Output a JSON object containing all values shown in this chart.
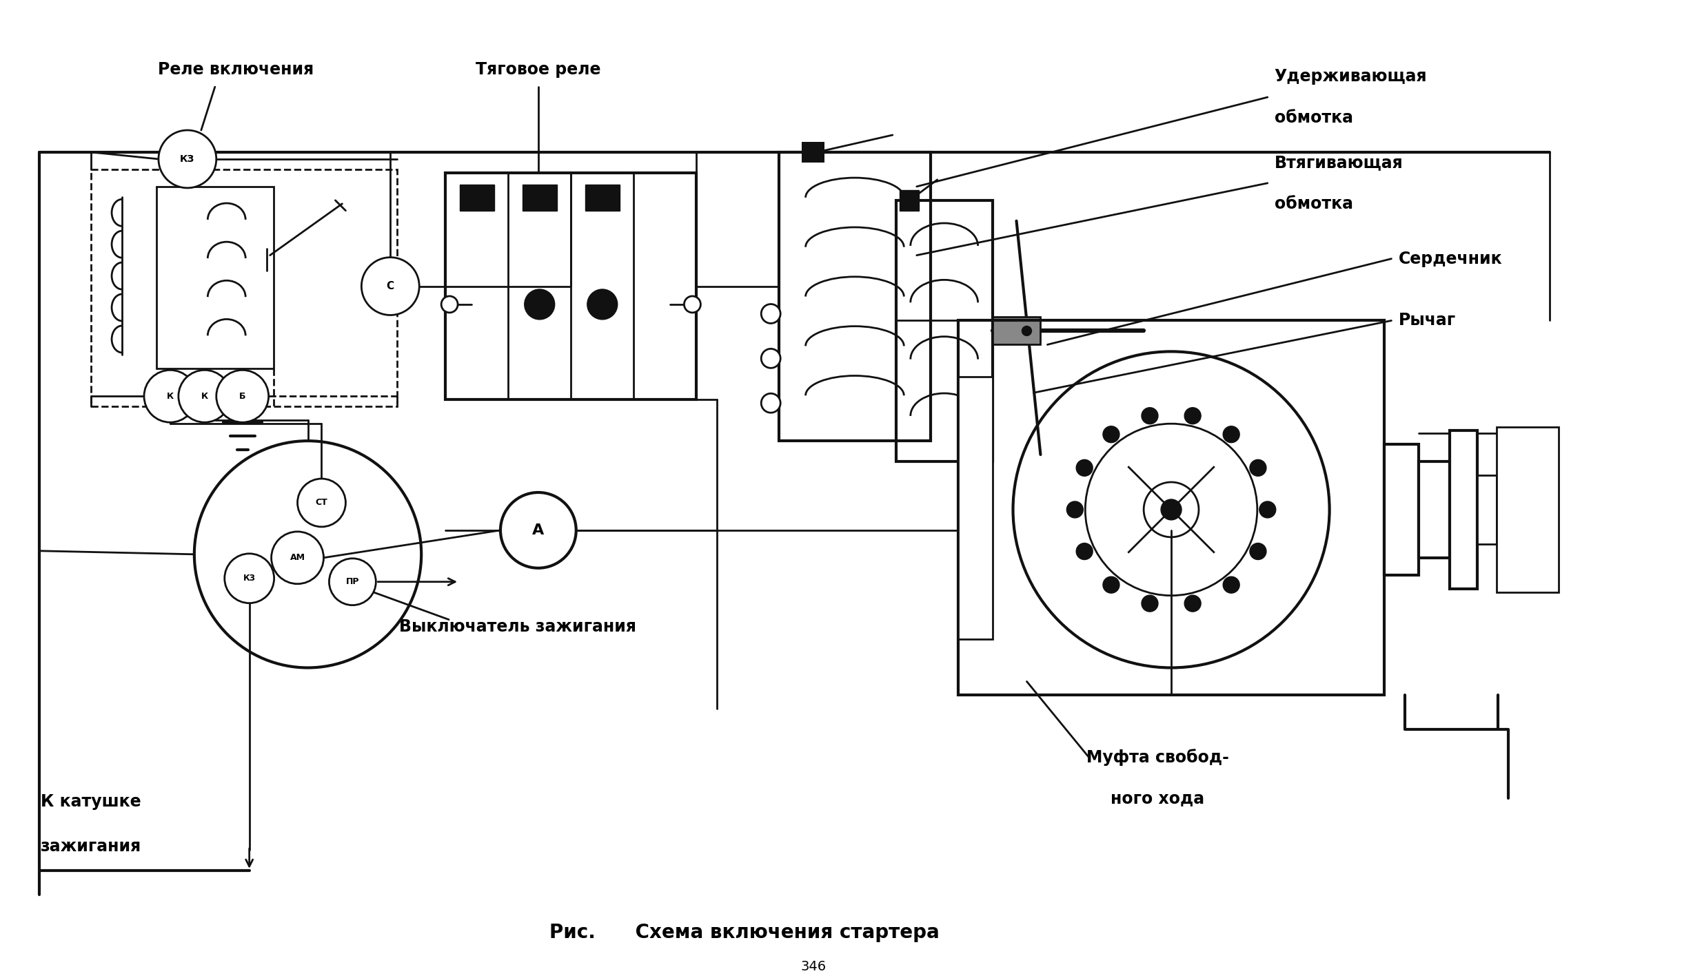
{
  "title_caption": "Рис.      Схема включения стартера",
  "page_num": "346",
  "bg_color": "#ffffff",
  "lc": "#111111",
  "labels": {
    "rele_vkl": "Реле включения",
    "tyagovoe": "Тяговое реле",
    "uderzhivayushchaya": "Удерживающая",
    "obmotka1": "обмотка",
    "vtyagivayushchaya": "Втягивающая",
    "obmotka2": "обмотка",
    "serdechnik": "Сердечник",
    "rychag": "Рычаг",
    "mufta1": "Муфта свобод-",
    "mufta2": "ного хода",
    "vyklyuchatel": "Выключатель зажигания",
    "k_katushke": "К катушке",
    "zazhiganiya": "зажигания"
  }
}
